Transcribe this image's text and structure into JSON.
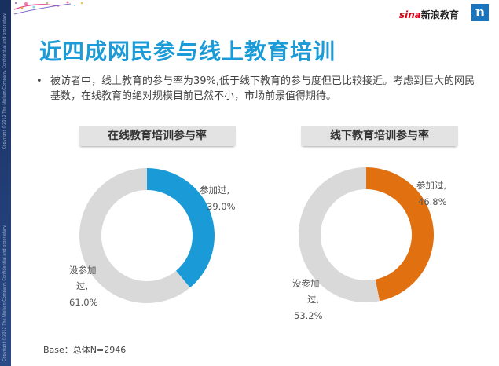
{
  "header": {
    "title": "近四成网民参与线上教育培训",
    "logo_sina": "sina",
    "logo_text": "新浪教育",
    "nielsen_mark": "n"
  },
  "side_strip": {
    "copyright_1": "Copyright ©2012 The Nielsen Company. Confidential and proprietary.",
    "copyright_2": "Copyright ©2012 The Nielsen Company. Confidential and proprietary."
  },
  "bullet": {
    "marker": "•",
    "text": "被访者中，线上教育的参与率为39%,低于线下教育的参与度但已比较接近。考虑到巨大的网民基数，在线教育的绝对规模目前已然不小，市场前景值得期待。"
  },
  "colors": {
    "online": "#1a9bd7",
    "offline": "#e07010",
    "not_participated": "#d9d9d9",
    "title": "#1b9bd7"
  },
  "chart_data": [
    {
      "type": "pie",
      "title": "在线教育培训参与率",
      "style": "donut",
      "slices": [
        {
          "label_line1": "参加过,",
          "label_line2": "39.0%",
          "value": 39.0,
          "color": "#1a9bd7"
        },
        {
          "label_line1": "没参加",
          "label_line2": "过,",
          "label_line3": "61.0%",
          "value": 61.0,
          "color": "#d9d9d9"
        }
      ]
    },
    {
      "type": "pie",
      "title": "线下教育培训参与率",
      "style": "donut",
      "slices": [
        {
          "label_line1": "参加过,",
          "label_line2": "46.8%",
          "value": 46.8,
          "color": "#e07010"
        },
        {
          "label_line1": "没参加",
          "label_line2": "过,",
          "label_line3": "53.2%",
          "value": 53.2,
          "color": "#d9d9d9"
        }
      ]
    }
  ],
  "footer": {
    "base": "Base：总体N=2946"
  }
}
